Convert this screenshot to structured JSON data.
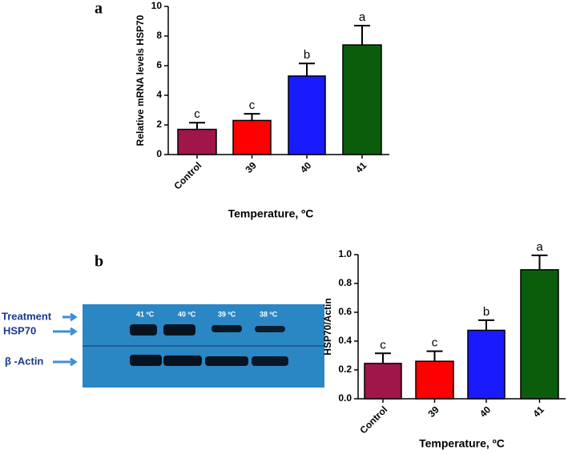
{
  "panel_labels": [
    "a",
    "b"
  ],
  "blot": {
    "row_labels": [
      "Treatment",
      "HSP70",
      "β -Actin"
    ],
    "lane_labels": [
      "41 ºC",
      "40 ºC",
      "39 ºC",
      "38 ºC"
    ]
  },
  "chart_data": [
    {
      "type": "bar",
      "ylabel": "Relative mRNA levels HSP70",
      "xlabel": "Temperature, ºC",
      "categories": [
        "Control",
        "39",
        "40",
        "41"
      ],
      "values": [
        1.7,
        2.3,
        5.3,
        7.4
      ],
      "errors": [
        0.45,
        0.45,
        0.85,
        1.3
      ],
      "annotations": [
        "c",
        "c",
        "b",
        "a"
      ],
      "colors": [
        "#a0154a",
        "#ff0000",
        "#1a1aff",
        "#0b5d0b"
      ],
      "ylim": [
        0,
        10
      ],
      "yticks": [
        0,
        2,
        4,
        6,
        8,
        10
      ]
    },
    {
      "type": "bar",
      "ylabel": "HSP70/Actin",
      "xlabel": "Temperature, ºC",
      "categories": [
        "Control",
        "39",
        "40",
        "41"
      ],
      "values": [
        0.245,
        0.26,
        0.475,
        0.895
      ],
      "errors": [
        0.07,
        0.07,
        0.07,
        0.1
      ],
      "annotations": [
        "c",
        "c",
        "b",
        "a"
      ],
      "colors": [
        "#a0154a",
        "#ff0000",
        "#1a1aff",
        "#0b5d0b"
      ],
      "ylim": [
        0,
        1
      ],
      "yticks": [
        {
          "value": 0,
          "label": "0.0"
        },
        0.2,
        0.4,
        0.6,
        0.8,
        {
          "value": 1,
          "label": "1.0"
        }
      ]
    }
  ]
}
